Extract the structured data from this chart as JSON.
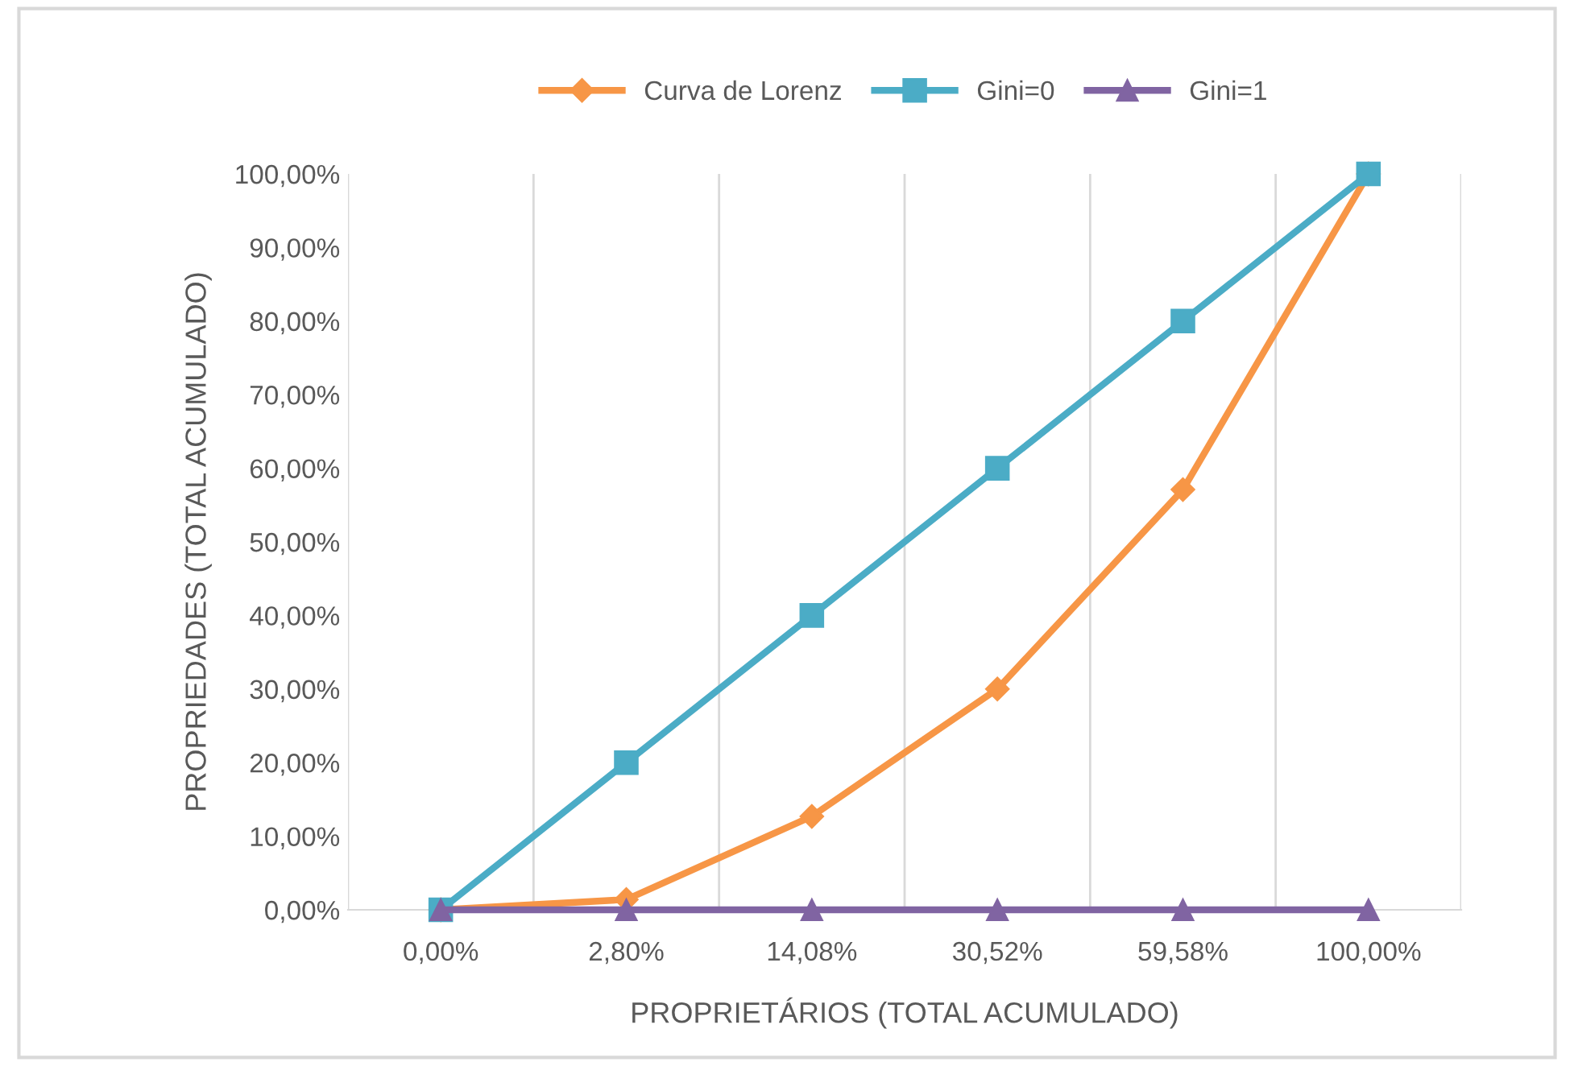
{
  "chart_data": {
    "type": "line",
    "xlabel": "PROPRIETÁRIOS (TOTAL ACUMULADO)",
    "ylabel": "PROPRIEDADES (TOTAL ACUMULADO)",
    "categories": [
      "0,00%",
      "2,80%",
      "14,08%",
      "30,52%",
      "59,58%",
      "100,00%"
    ],
    "series": [
      {
        "name": "Curva de Lorenz",
        "color": "#f79646",
        "marker": "diamond",
        "values": [
          0,
          1.4,
          12.7,
          30.0,
          57.1,
          100
        ]
      },
      {
        "name": "Gini=0",
        "color": "#4bacc6",
        "marker": "square",
        "values": [
          0,
          20,
          40,
          60,
          80,
          100
        ]
      },
      {
        "name": "Gini=1",
        "color": "#8064a2",
        "marker": "triangle",
        "values": [
          0,
          0,
          0,
          0,
          0,
          0
        ]
      }
    ],
    "ylim": [
      0,
      100
    ],
    "yticks": [
      {
        "value": 0,
        "label": "0,00%"
      },
      {
        "value": 10,
        "label": "10,00%"
      },
      {
        "value": 20,
        "label": "20,00%"
      },
      {
        "value": 30,
        "label": "30,00%"
      },
      {
        "value": 40,
        "label": "40,00%"
      },
      {
        "value": 50,
        "label": "50,00%"
      },
      {
        "value": 60,
        "label": "60,00%"
      },
      {
        "value": 70,
        "label": "70,00%"
      },
      {
        "value": 80,
        "label": "80,00%"
      },
      {
        "value": 90,
        "label": "90,00%"
      },
      {
        "value": 100,
        "label": "100,00%"
      }
    ],
    "grid": "x",
    "legend": "top",
    "line_style": "solid"
  }
}
